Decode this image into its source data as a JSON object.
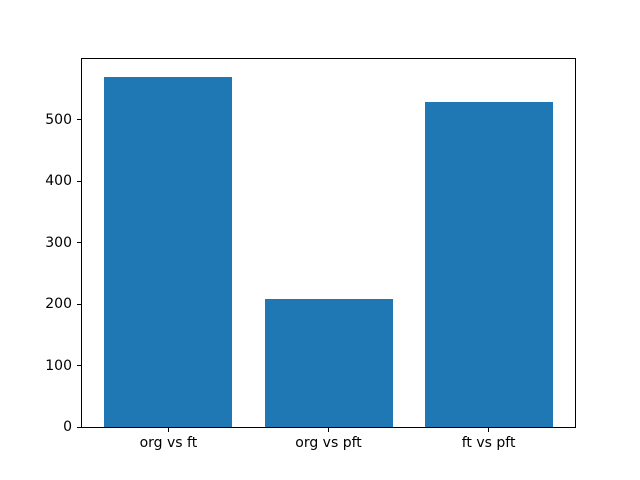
{
  "figure": {
    "background": "#ffffff"
  },
  "chart_data": {
    "type": "bar",
    "title": "",
    "xlabel": "",
    "ylabel": "",
    "categories": [
      "org vs ft",
      "org vs pft",
      "ft vs pft"
    ],
    "values": [
      570,
      208,
      528
    ],
    "bar_color": "#1f77b4",
    "spine_color": "#000000",
    "text_color": "#000000",
    "yticks": [
      0,
      100,
      200,
      300,
      400,
      500
    ],
    "ylim": [
      0,
      598.5
    ],
    "xlim": [
      -0.54,
      2.54
    ],
    "bar_width": 0.8,
    "grid": false,
    "legend": "none"
  }
}
